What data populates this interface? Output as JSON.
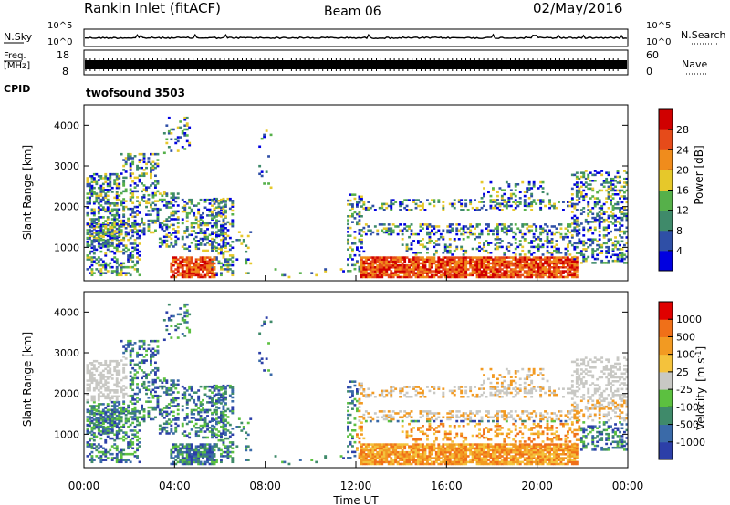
{
  "header": {
    "station": "Rankin Inlet (fitACF)",
    "beam": "Beam 06",
    "date": "02/May/2016"
  },
  "noise_panel": {
    "left_label": "N.Sky",
    "right_label": "N.Search",
    "left_ticks": [
      "10^5",
      "10^0"
    ],
    "right_ticks": [
      "10^5",
      "10^0"
    ]
  },
  "freq_panel": {
    "left_label_1": "Freq.",
    "left_label_2": "[MHz]",
    "right_label": "Nave",
    "left_ticks": [
      "18",
      "8"
    ],
    "right_ticks": [
      "60",
      "0"
    ]
  },
  "cpid_panel": {
    "label": "CPID",
    "value": "twofsound 3503"
  },
  "chart_data": [
    {
      "type": "heatmap",
      "name": "power",
      "ylabel": "Slant Range [km]",
      "ylim": [
        180,
        4500
      ],
      "yticks": [
        "1000",
        "2000",
        "3000",
        "4000"
      ],
      "colorbar_label": "Power [dB]",
      "colorbar_ticks": [
        "4",
        "8",
        "12",
        "16",
        "20",
        "24",
        "28"
      ],
      "colorbar_colors": [
        "#0000e0",
        "#2f4fa6",
        "#3f8a6a",
        "#56b04a",
        "#e6c82a",
        "#f08c1c",
        "#e64b1a",
        "#d00000"
      ],
      "grid": false
    },
    {
      "type": "heatmap",
      "name": "velocity",
      "ylabel": "Slant Range [km]",
      "xlabel": "Time UT",
      "ylim": [
        180,
        4500
      ],
      "yticks": [
        "1000",
        "2000",
        "3000",
        "4000"
      ],
      "xticks": [
        "00:00",
        "04:00",
        "08:00",
        "12:00",
        "16:00",
        "20:00",
        "00:00"
      ],
      "colorbar_label_main": "Velocity",
      "colorbar_label_unit": "[m s",
      "colorbar_label_sup": "-1",
      "colorbar_label_end": "]",
      "colorbar_ticks": [
        "1000",
        "500",
        "100",
        "25",
        "-25",
        "-100",
        "-500",
        "-1000"
      ],
      "colorbar_colors": [
        "#2c3fa8",
        "#3a6aa8",
        "#3f8a6a",
        "#5cc040",
        "#c8c8c4",
        "#f4c23c",
        "#f29a22",
        "#f07018",
        "#e00000"
      ],
      "grid": false
    }
  ]
}
